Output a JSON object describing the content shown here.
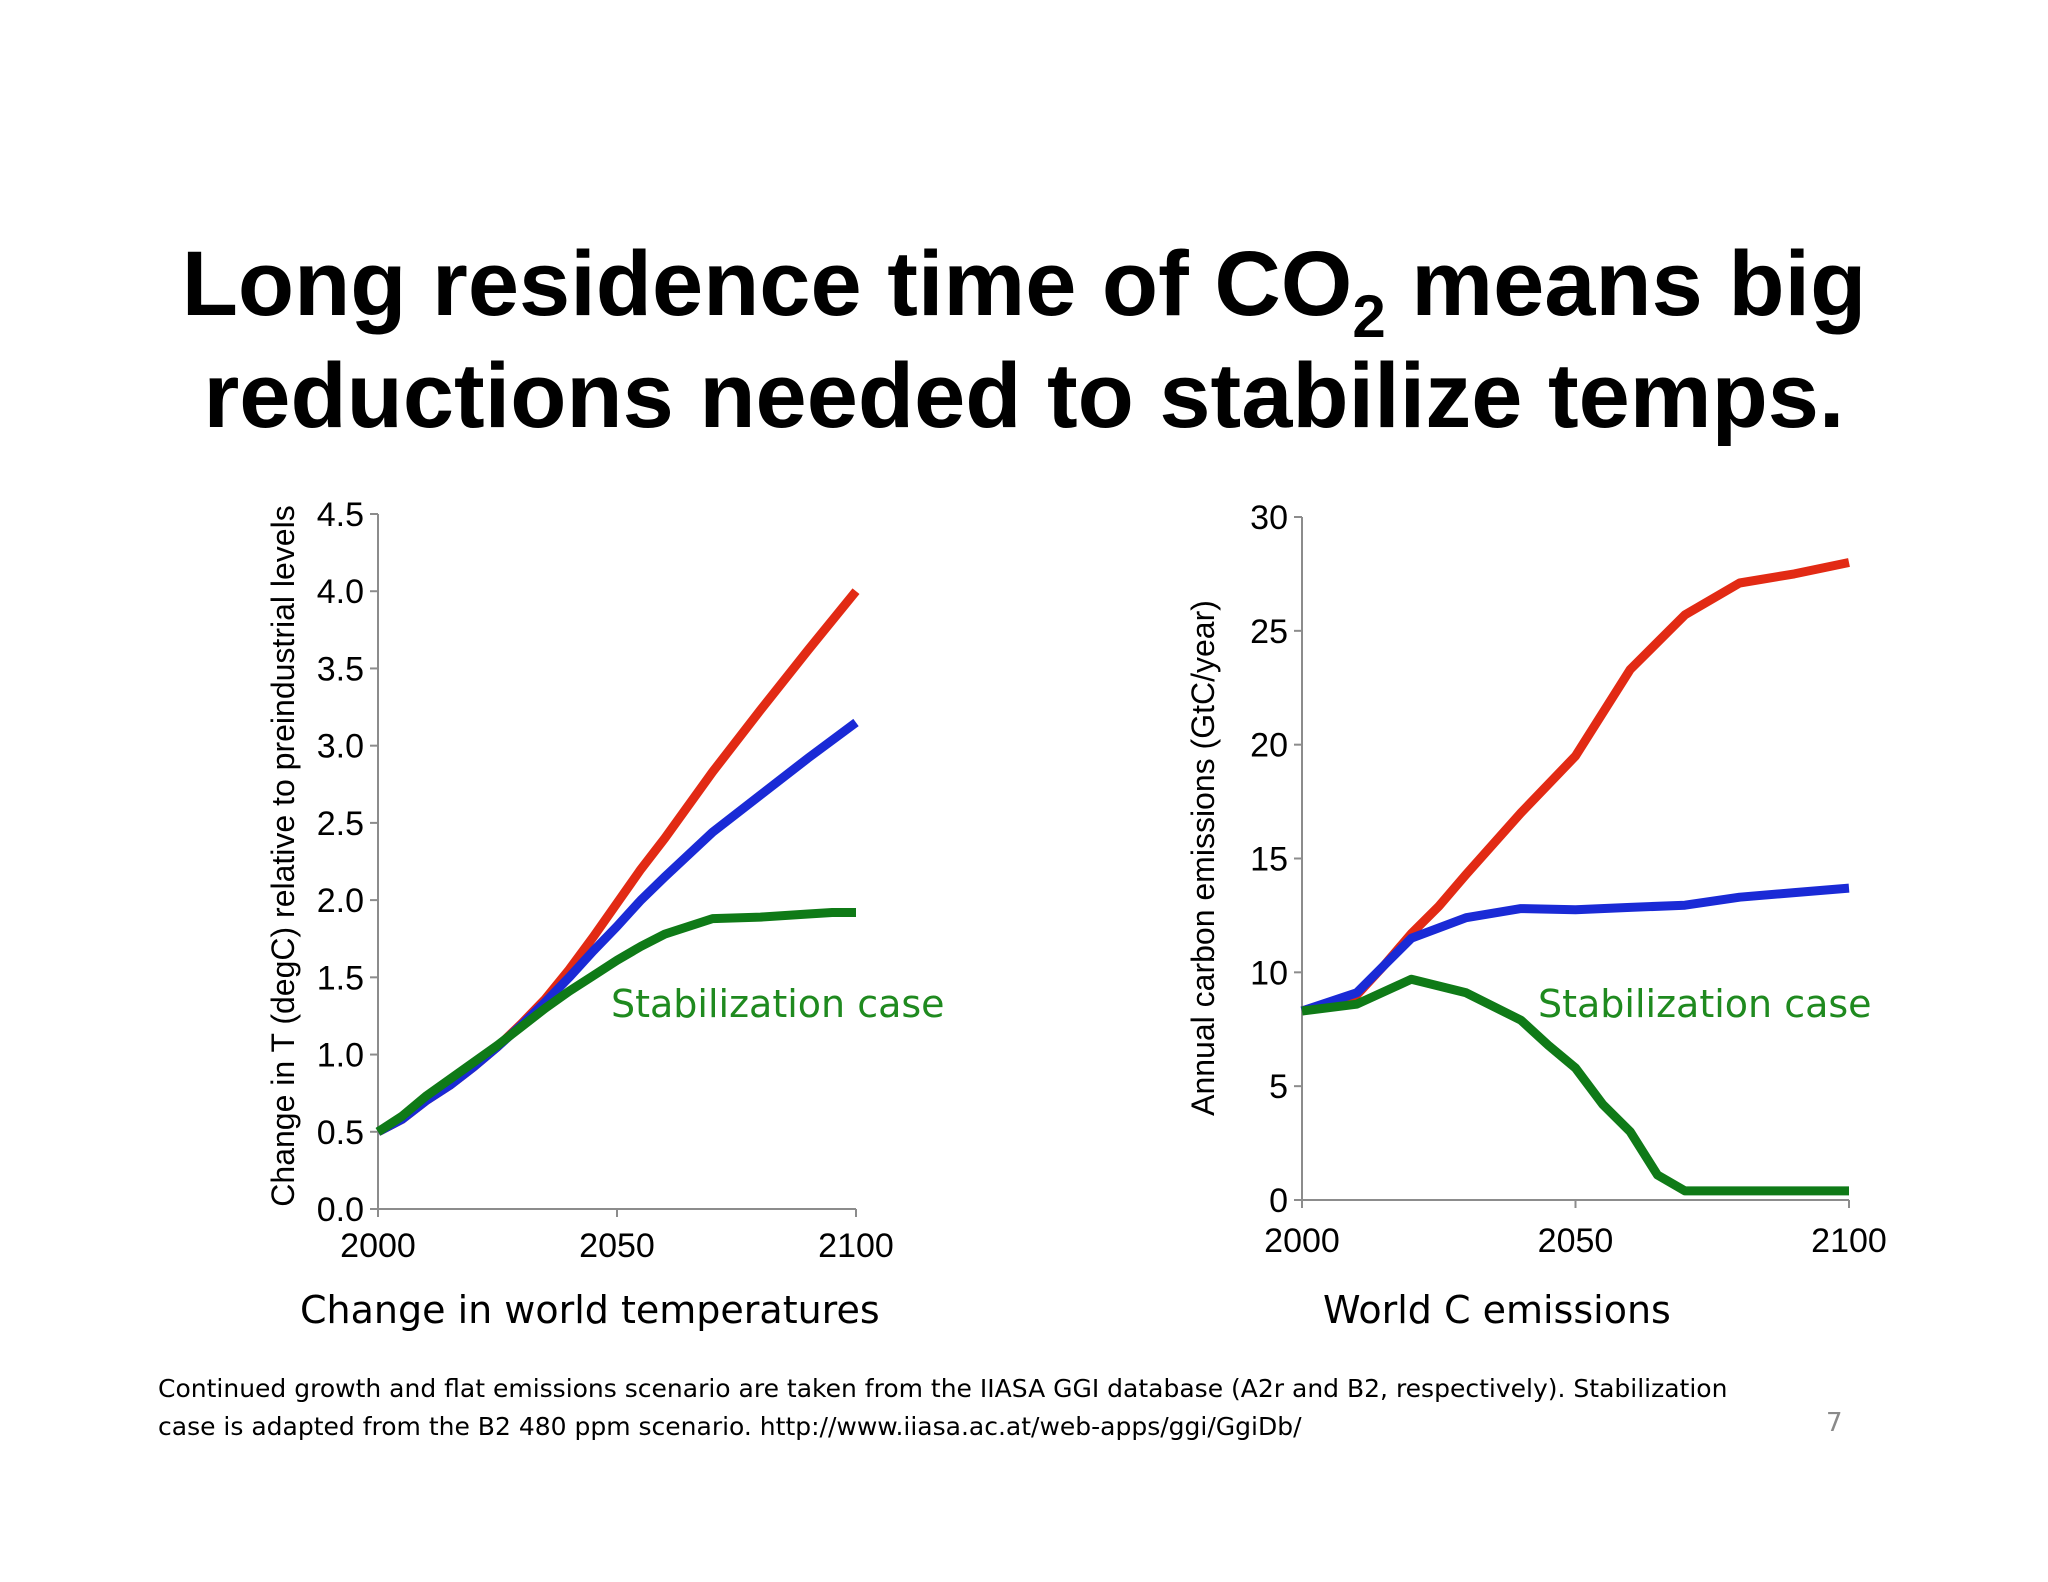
{
  "slide": {
    "title_line1_part1": "Long residence time of CO",
    "title_subscript": "2",
    "title_line1_part2": " means big",
    "title_line2": "reductions needed to stabilize temps.",
    "footnote_line1": "Continued growth and flat emissions scenario are taken from the IIASA GGI database (A2r and B2, respectively).  Stabilization",
    "footnote_line2": "case is adapted from the B2 480 ppm scenario.  http://www.iiasa.ac.at/web-apps/ggi/GgiDb/",
    "page_number": "7"
  },
  "colors": {
    "red": "#e22a14",
    "blue": "#1a2ad6",
    "green": "#0f7a17",
    "annotation": "#1f8a1f"
  },
  "chart_data": [
    {
      "type": "line",
      "caption": "Change in world temperatures",
      "ylabel": "Change in T (degC) relative to preindustrial levels",
      "xlim": [
        2000,
        2100
      ],
      "ylim": [
        0,
        4.5
      ],
      "xticks": [
        "2000",
        "2050",
        "2100"
      ],
      "yticks": [
        "0.0",
        "0.5",
        "1.0",
        "1.5",
        "2.0",
        "2.5",
        "3.0",
        "3.5",
        "4.0",
        "4.5"
      ],
      "annotation": "Stabilization case",
      "series": [
        {
          "color": "#e22a14",
          "x": [
            2000,
            2005,
            2010,
            2015,
            2020,
            2025,
            2030,
            2035,
            2040,
            2045,
            2050,
            2055,
            2060,
            2070,
            2080,
            2090,
            2100
          ],
          "y": [
            0.5,
            0.58,
            0.7,
            0.8,
            0.92,
            1.05,
            1.2,
            1.36,
            1.55,
            1.76,
            1.98,
            2.2,
            2.4,
            2.83,
            3.23,
            3.62,
            4.0
          ]
        },
        {
          "color": "#1a2ad6",
          "x": [
            2000,
            2005,
            2010,
            2015,
            2020,
            2025,
            2030,
            2035,
            2040,
            2045,
            2050,
            2055,
            2060,
            2070,
            2080,
            2090,
            2100
          ],
          "y": [
            0.5,
            0.58,
            0.7,
            0.8,
            0.92,
            1.05,
            1.19,
            1.34,
            1.5,
            1.67,
            1.83,
            2.0,
            2.15,
            2.44,
            2.68,
            2.92,
            3.15
          ]
        },
        {
          "color": "#0f7a17",
          "x": [
            2000,
            2005,
            2010,
            2015,
            2020,
            2025,
            2030,
            2035,
            2040,
            2045,
            2050,
            2055,
            2060,
            2070,
            2080,
            2090,
            2095,
            2100
          ],
          "y": [
            0.5,
            0.6,
            0.73,
            0.84,
            0.95,
            1.06,
            1.18,
            1.3,
            1.41,
            1.51,
            1.61,
            1.7,
            1.78,
            1.88,
            1.89,
            1.91,
            1.92,
            1.92
          ]
        }
      ]
    },
    {
      "type": "line",
      "caption": "World C emissions",
      "ylabel": "Annual carbon emissions  (GtC/year)",
      "xlim": [
        2000,
        2100
      ],
      "ylim": [
        0,
        30
      ],
      "xticks": [
        "2000",
        "2050",
        "2100"
      ],
      "yticks": [
        "0",
        "5",
        "10",
        "15",
        "20",
        "25",
        "30"
      ],
      "annotation": "Stabilization case",
      "series": [
        {
          "color": "#e22a14",
          "x": [
            2000,
            2010,
            2015,
            2020,
            2025,
            2030,
            2040,
            2050,
            2060,
            2070,
            2080,
            2090,
            2100
          ],
          "y": [
            8.3,
            9.0,
            10.3,
            11.7,
            12.9,
            14.3,
            17.0,
            19.5,
            23.3,
            25.7,
            27.1,
            27.5,
            28.0
          ]
        },
        {
          "color": "#1a2ad6",
          "x": [
            2000,
            2010,
            2015,
            2020,
            2030,
            2040,
            2050,
            2060,
            2070,
            2080,
            2090,
            2100
          ],
          "y": [
            8.3,
            9.1,
            10.3,
            11.5,
            12.4,
            12.8,
            12.75,
            12.85,
            12.95,
            13.3,
            13.5,
            13.7
          ]
        },
        {
          "color": "#0f7a17",
          "x": [
            2000,
            2010,
            2020,
            2030,
            2040,
            2045,
            2050,
            2055,
            2060,
            2065,
            2070,
            2080,
            2090,
            2100
          ],
          "y": [
            8.3,
            8.6,
            9.7,
            9.1,
            7.9,
            6.8,
            5.8,
            4.2,
            3.0,
            1.1,
            0.4,
            0.4,
            0.4,
            0.4
          ]
        }
      ]
    }
  ]
}
